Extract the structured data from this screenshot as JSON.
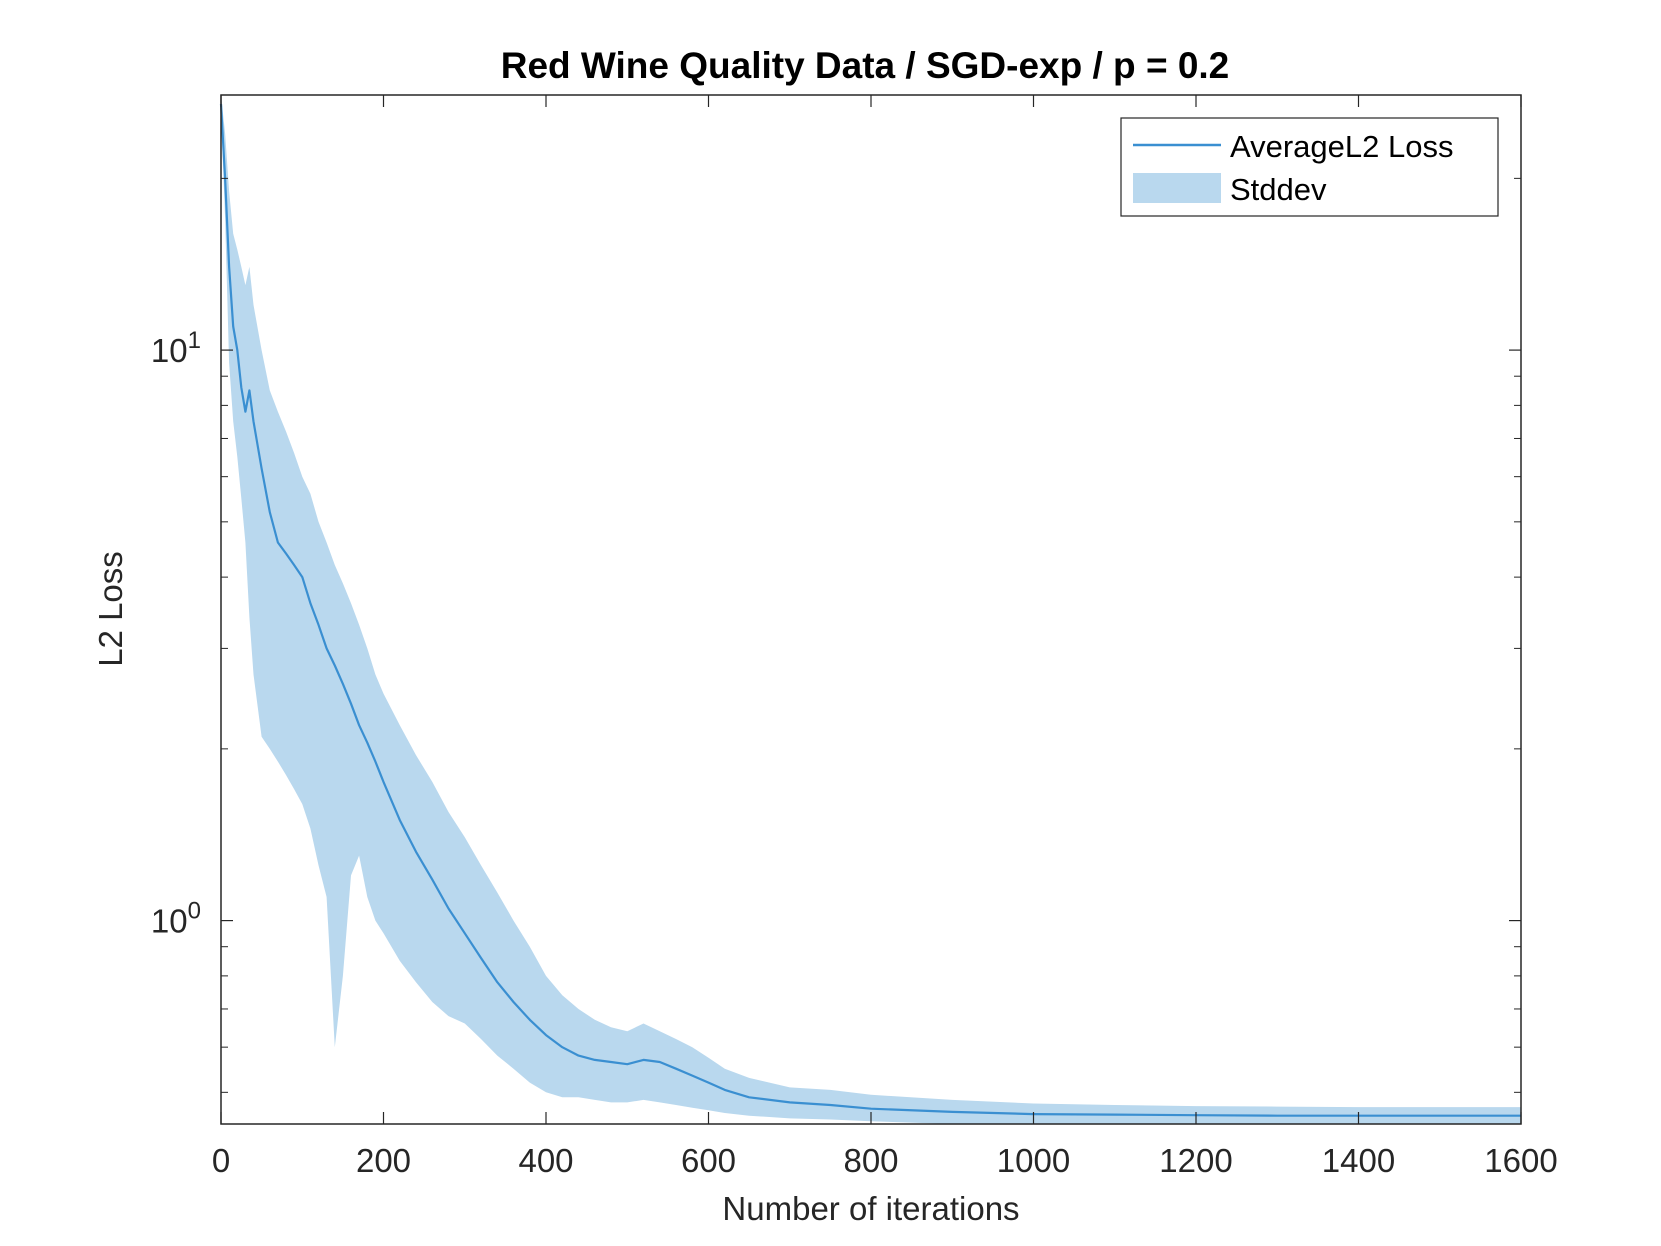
{
  "chart_data": {
    "type": "line",
    "title": "Red Wine Quality Data / SGD-exp  / p = 0.2",
    "xlabel": "Number of iterations",
    "ylabel": "L2 Loss",
    "xlim": [
      0,
      1600
    ],
    "ylim": [
      0.44,
      28
    ],
    "yscale": "log",
    "x_ticks": [
      0,
      200,
      400,
      600,
      800,
      1000,
      1200,
      1400,
      1600
    ],
    "x_tick_labels": [
      "0",
      "200",
      "400",
      "600",
      "800",
      "1000",
      "1200",
      "1400",
      "1600"
    ],
    "y_ticks": [
      1,
      10
    ],
    "y_tick_bases": [
      "10",
      "10"
    ],
    "y_tick_exponents": [
      "0",
      "1"
    ],
    "grid": false,
    "legend_position": "top-right",
    "colors": {
      "line": "#3a8fd1",
      "band": "#b9d8ee",
      "axis": "#262626"
    },
    "series": [
      {
        "name": "AverageL2 Loss",
        "x": [
          0,
          5,
          10,
          15,
          20,
          25,
          30,
          35,
          40,
          50,
          60,
          70,
          80,
          90,
          100,
          110,
          120,
          130,
          140,
          150,
          160,
          170,
          180,
          190,
          200,
          220,
          240,
          260,
          280,
          300,
          320,
          340,
          360,
          380,
          400,
          420,
          440,
          460,
          480,
          500,
          520,
          540,
          560,
          580,
          600,
          620,
          650,
          700,
          750,
          800,
          900,
          1000,
          1100,
          1200,
          1300,
          1400,
          1500,
          1600
        ],
        "y": [
          27,
          20,
          14,
          11,
          10,
          8.6,
          7.8,
          8.5,
          7.5,
          6.2,
          5.2,
          4.6,
          4.4,
          4.2,
          4.0,
          3.6,
          3.3,
          3.0,
          2.8,
          2.6,
          2.4,
          2.2,
          2.05,
          1.9,
          1.75,
          1.5,
          1.32,
          1.18,
          1.05,
          0.95,
          0.86,
          0.78,
          0.72,
          0.67,
          0.63,
          0.6,
          0.58,
          0.57,
          0.565,
          0.56,
          0.57,
          0.565,
          0.55,
          0.535,
          0.52,
          0.505,
          0.49,
          0.48,
          0.475,
          0.468,
          0.462,
          0.458,
          0.457,
          0.456,
          0.455,
          0.455,
          0.455,
          0.455
        ]
      },
      {
        "name": "Stddev",
        "x": [
          0,
          5,
          10,
          15,
          20,
          25,
          30,
          35,
          40,
          50,
          60,
          70,
          80,
          90,
          100,
          110,
          120,
          130,
          140,
          150,
          160,
          170,
          180,
          190,
          200,
          220,
          240,
          260,
          280,
          300,
          320,
          340,
          360,
          380,
          400,
          420,
          440,
          460,
          480,
          500,
          520,
          540,
          560,
          580,
          600,
          620,
          650,
          700,
          750,
          800,
          900,
          1000,
          1100,
          1200,
          1300,
          1400,
          1500,
          1600
        ],
        "lower": [
          26,
          17,
          9.5,
          7.5,
          6.5,
          5.5,
          4.6,
          3.4,
          2.7,
          2.1,
          2.0,
          1.9,
          1.8,
          1.7,
          1.6,
          1.45,
          1.25,
          1.1,
          0.6,
          0.8,
          1.2,
          1.3,
          1.1,
          1.0,
          0.95,
          0.85,
          0.78,
          0.72,
          0.68,
          0.66,
          0.62,
          0.58,
          0.55,
          0.52,
          0.5,
          0.49,
          0.49,
          0.485,
          0.48,
          0.48,
          0.485,
          0.48,
          0.475,
          0.47,
          0.465,
          0.46,
          0.455,
          0.45,
          0.448,
          0.445,
          0.44,
          0.44,
          0.44,
          0.44,
          0.44,
          0.44,
          0.44,
          0.44
        ],
        "upper": [
          28,
          24,
          19,
          16,
          15,
          14,
          13,
          14,
          12,
          10,
          8.5,
          7.8,
          7.2,
          6.6,
          6.0,
          5.6,
          5.0,
          4.6,
          4.2,
          3.9,
          3.6,
          3.3,
          3.0,
          2.7,
          2.5,
          2.2,
          1.95,
          1.75,
          1.55,
          1.4,
          1.25,
          1.12,
          1.0,
          0.9,
          0.8,
          0.74,
          0.7,
          0.67,
          0.65,
          0.64,
          0.66,
          0.64,
          0.62,
          0.6,
          0.575,
          0.55,
          0.53,
          0.51,
          0.505,
          0.495,
          0.485,
          0.478,
          0.475,
          0.473,
          0.472,
          0.471,
          0.471,
          0.471
        ]
      }
    ]
  }
}
